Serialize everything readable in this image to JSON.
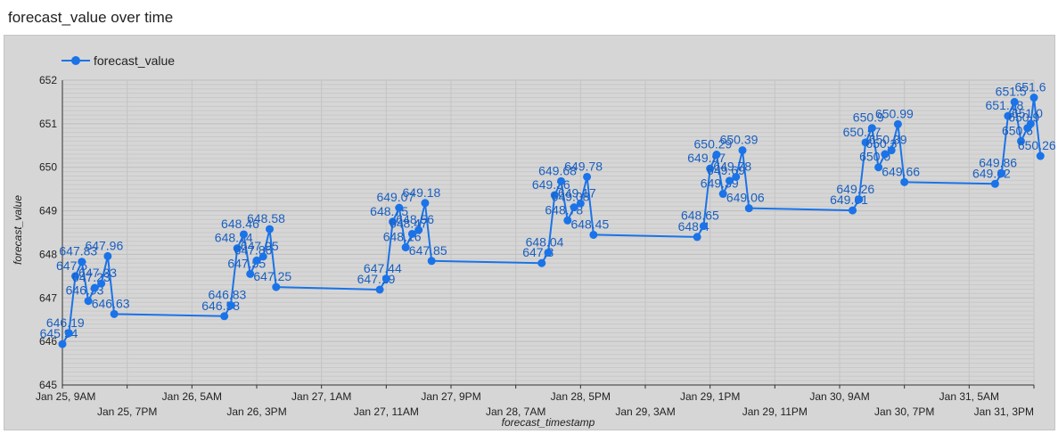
{
  "page": {
    "title": "forecast_value over time"
  },
  "colors": {
    "series": "#1a73e8",
    "label": "#1a5fbf",
    "panel": "#d6d6d6"
  },
  "chart_data": {
    "type": "line",
    "title": "forecast_value over time",
    "xlabel": "forecast_timestamp",
    "ylabel": "forecast_value",
    "ylim": [
      645,
      652
    ],
    "y_ticks": [
      "645",
      "646",
      "647",
      "648",
      "649",
      "650",
      "651",
      "652"
    ],
    "x_ticks": [
      {
        "t": "2024-01-25 09:00",
        "label": "Jan 25, 9AM"
      },
      {
        "t": "2024-01-25 19:00",
        "label": "Jan 25, 7PM"
      },
      {
        "t": "2024-01-26 05:00",
        "label": "Jan 26, 5AM"
      },
      {
        "t": "2024-01-26 15:00",
        "label": "Jan 26, 3PM"
      },
      {
        "t": "2024-01-27 01:00",
        "label": "Jan 27, 1AM"
      },
      {
        "t": "2024-01-27 11:00",
        "label": "Jan 27, 11AM"
      },
      {
        "t": "2024-01-27 21:00",
        "label": "Jan 27, 9PM"
      },
      {
        "t": "2024-01-28 07:00",
        "label": "Jan 28, 7AM"
      },
      {
        "t": "2024-01-28 17:00",
        "label": "Jan 28, 5PM"
      },
      {
        "t": "2024-01-29 03:00",
        "label": "Jan 29, 3AM"
      },
      {
        "t": "2024-01-29 13:00",
        "label": "Jan 29, 1PM"
      },
      {
        "t": "2024-01-29 23:00",
        "label": "Jan 29, 11PM"
      },
      {
        "t": "2024-01-30 09:00",
        "label": "Jan 30, 9AM"
      },
      {
        "t": "2024-01-30 19:00",
        "label": "Jan 30, 7PM"
      },
      {
        "t": "2024-01-31 05:00",
        "label": "Jan 31, 5AM"
      },
      {
        "t": "2024-01-31 15:00",
        "label": "Jan 31, 3PM"
      }
    ],
    "xlim": [
      "2024-01-25 09:00",
      "2024-01-31 15:00"
    ],
    "legend": {
      "position": "top-left"
    },
    "grid": true,
    "series": [
      {
        "name": "forecast_value",
        "points": [
          {
            "t": "2024-01-25 09:00",
            "y": 645.94,
            "label": "645.94"
          },
          {
            "t": "2024-01-25 10:00",
            "y": 646.19,
            "label": "646.19"
          },
          {
            "t": "2024-01-25 11:00",
            "y": 647.5,
            "label": "647.5"
          },
          {
            "t": "2024-01-25 12:00",
            "y": 647.83,
            "label": "647.83"
          },
          {
            "t": "2024-01-25 13:00",
            "y": 646.93,
            "label": "646.93"
          },
          {
            "t": "2024-01-25 14:00",
            "y": 647.23,
            "label": "647.23"
          },
          {
            "t": "2024-01-25 15:00",
            "y": 647.33,
            "label": "647.33"
          },
          {
            "t": "2024-01-25 16:00",
            "y": 647.96,
            "label": "647.96"
          },
          {
            "t": "2024-01-25 17:00",
            "y": 646.63,
            "label": "646.63"
          },
          {
            "t": "2024-01-26 10:00",
            "y": 646.58,
            "label": "646.58"
          },
          {
            "t": "2024-01-26 11:00",
            "y": 646.83,
            "label": "646.83"
          },
          {
            "t": "2024-01-26 12:00",
            "y": 648.14,
            "label": "648.14"
          },
          {
            "t": "2024-01-26 13:00",
            "y": 648.46,
            "label": "648.46"
          },
          {
            "t": "2024-01-26 14:00",
            "y": 647.55,
            "label": "647.55"
          },
          {
            "t": "2024-01-26 15:00",
            "y": 647.86,
            "label": "647.86"
          },
          {
            "t": "2024-01-26 16:00",
            "y": 647.95,
            "label": "647.95"
          },
          {
            "t": "2024-01-26 17:00",
            "y": 648.58,
            "label": "648.58"
          },
          {
            "t": "2024-01-26 18:00",
            "y": 647.25,
            "label": "647.25"
          },
          {
            "t": "2024-01-27 10:00",
            "y": 647.19,
            "label": "647.19"
          },
          {
            "t": "2024-01-27 11:00",
            "y": 647.44,
            "label": "647.44"
          },
          {
            "t": "2024-01-27 12:00",
            "y": 648.75,
            "label": "648.75"
          },
          {
            "t": "2024-01-27 13:00",
            "y": 649.07,
            "label": "649.07"
          },
          {
            "t": "2024-01-27 14:00",
            "y": 648.16,
            "label": "648.16"
          },
          {
            "t": "2024-01-27 15:00",
            "y": 648.47,
            "label": "648.47"
          },
          {
            "t": "2024-01-27 16:00",
            "y": 648.56,
            "label": "648.56"
          },
          {
            "t": "2024-01-27 17:00",
            "y": 649.18,
            "label": "649.18"
          },
          {
            "t": "2024-01-27 18:00",
            "y": 647.85,
            "label": "647.85"
          },
          {
            "t": "2024-01-28 11:00",
            "y": 647.8,
            "label": "647.8"
          },
          {
            "t": "2024-01-28 12:00",
            "y": 648.04,
            "label": "648.04"
          },
          {
            "t": "2024-01-28 13:00",
            "y": 649.36,
            "label": "649.36"
          },
          {
            "t": "2024-01-28 14:00",
            "y": 649.68,
            "label": "649.68"
          },
          {
            "t": "2024-01-28 15:00",
            "y": 648.78,
            "label": "648.78"
          },
          {
            "t": "2024-01-28 16:00",
            "y": 649.08,
            "label": "649.08"
          },
          {
            "t": "2024-01-28 17:00",
            "y": 649.17,
            "label": "649.17"
          },
          {
            "t": "2024-01-28 18:00",
            "y": 649.78,
            "label": "649.78"
          },
          {
            "t": "2024-01-28 19:00",
            "y": 648.45,
            "label": "648.45"
          },
          {
            "t": "2024-01-29 11:00",
            "y": 648.4,
            "label": "648.4"
          },
          {
            "t": "2024-01-29 12:00",
            "y": 648.65,
            "label": "648.65"
          },
          {
            "t": "2024-01-29 13:00",
            "y": 649.97,
            "label": "649.97"
          },
          {
            "t": "2024-01-29 14:00",
            "y": 650.29,
            "label": "650.29"
          },
          {
            "t": "2024-01-29 15:00",
            "y": 649.39,
            "label": "649.39"
          },
          {
            "t": "2024-01-29 16:00",
            "y": 649.69,
            "label": "649.69"
          },
          {
            "t": "2024-01-29 17:00",
            "y": 649.78,
            "label": "649.78"
          },
          {
            "t": "2024-01-29 18:00",
            "y": 650.39,
            "label": "650.39"
          },
          {
            "t": "2024-01-29 19:00",
            "y": 649.06,
            "label": "649.06"
          },
          {
            "t": "2024-01-30 11:00",
            "y": 649.01,
            "label": "649.01"
          },
          {
            "t": "2024-01-30 12:00",
            "y": 649.26,
            "label": "649.26"
          },
          {
            "t": "2024-01-30 13:00",
            "y": 650.57,
            "label": "650.57"
          },
          {
            "t": "2024-01-30 14:00",
            "y": 650.9,
            "label": "650.9"
          },
          {
            "t": "2024-01-30 15:00",
            "y": 650.0,
            "label": "650.0"
          },
          {
            "t": "2024-01-30 16:00",
            "y": 650.3,
            "label": "650.3"
          },
          {
            "t": "2024-01-30 17:00",
            "y": 650.39,
            "label": "650.39"
          },
          {
            "t": "2024-01-30 18:00",
            "y": 650.99,
            "label": "650.99"
          },
          {
            "t": "2024-01-30 19:00",
            "y": 649.66,
            "label": "649.66"
          },
          {
            "t": "2024-01-31 09:00",
            "y": 649.62,
            "label": "649.62"
          },
          {
            "t": "2024-01-31 10:00",
            "y": 649.86,
            "label": "649.86"
          },
          {
            "t": "2024-01-31 11:00",
            "y": 651.18,
            "label": "651.18"
          },
          {
            "t": "2024-01-31 12:00",
            "y": 651.5,
            "label": "651.5"
          },
          {
            "t": "2024-01-31 13:00",
            "y": 650.6,
            "label": "650.6"
          },
          {
            "t": "2024-01-31 14:00",
            "y": 650.9,
            "label": "650.9"
          },
          {
            "t": "2024-01-31 14:30",
            "y": 651.0,
            "label": "651.0"
          },
          {
            "t": "2024-01-31 15:00",
            "y": 651.6,
            "label": "651.6"
          },
          {
            "t": "2024-01-31 16:00",
            "y": 650.26,
            "label": "650.26"
          }
        ]
      }
    ]
  }
}
